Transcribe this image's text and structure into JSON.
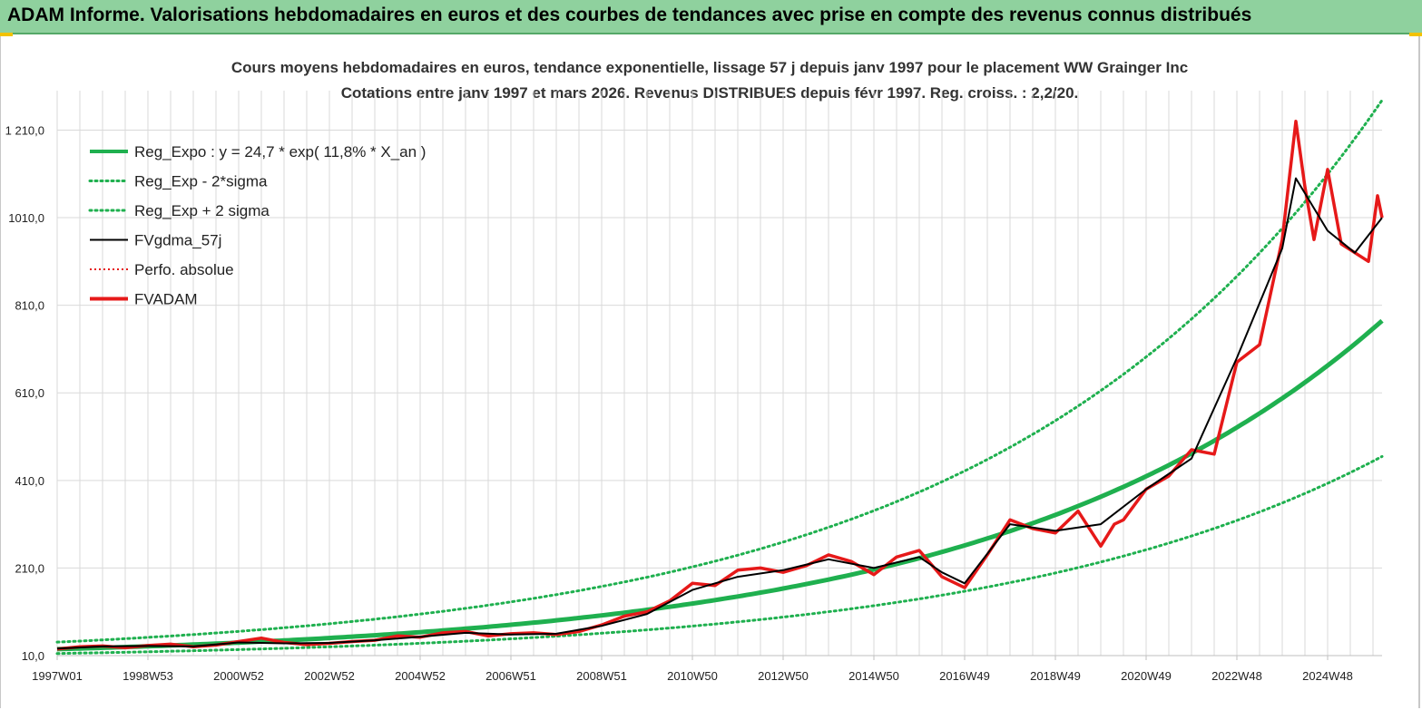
{
  "banner": {
    "title": "ADAM Informe. Valorisations hebdomadaires en euros et des courbes de tendances avec prise en compte des revenus connus distribués"
  },
  "colors": {
    "banner_bg": "#8fd19e",
    "regression": "#1fb04f",
    "smoothed": "#000000",
    "fvadam": "#e61919",
    "perfo": "#e61919",
    "grid": "#d9d9d9"
  },
  "chart_data": {
    "type": "line",
    "title_lines": [
      "Cours moyens hebdomadaires en euros, tendance exponentielle, lissage 57 j depuis janv 1997 pour le placement WW Grainger Inc",
      "Cotations entre janv 1997 et mars 2026. Revenus DISTRIBUES depuis févr 1997. Reg. croiss. : 2,2/20."
    ],
    "x_unit": "year",
    "x_range": [
      1997.0,
      2026.2
    ],
    "y_range": [
      10,
      1300
    ],
    "y_ticks": [
      10,
      210,
      410,
      610,
      810,
      1010,
      1210
    ],
    "y_tick_labels": [
      "10,0",
      "210,0",
      "410,0",
      "610,0",
      "810,0",
      "1010,0",
      "1 210,0"
    ],
    "x_ticks": [
      {
        "x": 1997.0,
        "label": "1997W01"
      },
      {
        "x": 1999.0,
        "label": "1998W53"
      },
      {
        "x": 2001.0,
        "label": "2000W52"
      },
      {
        "x": 2003.0,
        "label": "2002W52"
      },
      {
        "x": 2005.0,
        "label": "2004W52"
      },
      {
        "x": 2007.0,
        "label": "2006W51"
      },
      {
        "x": 2009.0,
        "label": "2008W51"
      },
      {
        "x": 2011.0,
        "label": "2010W50"
      },
      {
        "x": 2013.0,
        "label": "2012W50"
      },
      {
        "x": 2015.0,
        "label": "2014W50"
      },
      {
        "x": 2017.0,
        "label": "2016W49"
      },
      {
        "x": 2019.0,
        "label": "2018W49"
      },
      {
        "x": 2021.0,
        "label": "2020W49"
      },
      {
        "x": 2023.0,
        "label": "2022W48"
      },
      {
        "x": 2025.0,
        "label": "2024W48"
      }
    ],
    "regression": {
      "a": 24.7,
      "rate": 0.118,
      "lower_factor": 0.6,
      "upper_factor": 1.65
    },
    "legend": [
      {
        "key": "reg",
        "label": "Reg_Expo : y = 24,7 * exp( 11,8% *  X_an )",
        "color": "#1fb04f",
        "style": "solid-thick"
      },
      {
        "key": "lower",
        "label": "Reg_Exp - 2*sigma",
        "color": "#1fb04f",
        "style": "dotted"
      },
      {
        "key": "upper",
        "label": "Reg_Exp + 2 sigma",
        "color": "#1fb04f",
        "style": "dotted"
      },
      {
        "key": "smooth",
        "label": "FVgdma_57j",
        "color": "#000000",
        "style": "solid"
      },
      {
        "key": "perfo",
        "label": "Perfo. absolue",
        "color": "#e61919",
        "style": "dotted-thin"
      },
      {
        "key": "fvadam",
        "label": "FVADAM",
        "color": "#e61919",
        "style": "solid-thick"
      }
    ],
    "series": [
      {
        "name": "FVADAM",
        "x": [
          1997.0,
          1997.5,
          1998.0,
          1998.5,
          1999.0,
          1999.5,
          2000.0,
          2000.5,
          2001.0,
          2001.5,
          2002.0,
          2002.5,
          2003.0,
          2003.5,
          2004.0,
          2004.5,
          2005.0,
          2005.5,
          2006.0,
          2006.5,
          2007.0,
          2007.5,
          2008.0,
          2008.5,
          2009.0,
          2009.5,
          2010.0,
          2010.5,
          2011.0,
          2011.5,
          2012.0,
          2012.5,
          2013.0,
          2013.5,
          2014.0,
          2014.5,
          2015.0,
          2015.5,
          2016.0,
          2016.5,
          2017.0,
          2017.5,
          2018.0,
          2018.5,
          2019.0,
          2019.5,
          2020.0,
          2020.3,
          2020.5,
          2021.0,
          2021.5,
          2022.0,
          2022.5,
          2023.0,
          2023.5,
          2024.0,
          2024.3,
          2024.5,
          2024.7,
          2025.0,
          2025.3,
          2025.6,
          2025.9,
          2026.1,
          2026.2
        ],
        "values": [
          25,
          30,
          32,
          28,
          33,
          36,
          30,
          34,
          42,
          50,
          40,
          35,
          38,
          42,
          45,
          55,
          52,
          62,
          65,
          55,
          60,
          62,
          58,
          65,
          80,
          100,
          110,
          135,
          175,
          170,
          205,
          210,
          200,
          215,
          240,
          225,
          195,
          235,
          250,
          190,
          165,
          240,
          320,
          300,
          290,
          340,
          260,
          310,
          320,
          390,
          420,
          480,
          470,
          680,
          720,
          960,
          1230,
          1080,
          960,
          1120,
          950,
          930,
          910,
          1060,
          1010
        ]
      },
      {
        "name": "FVgdma_57j",
        "x": [
          1997.0,
          1998.0,
          1999.0,
          2000.0,
          2001.0,
          2002.0,
          2003.0,
          2004.0,
          2005.0,
          2006.0,
          2007.0,
          2008.0,
          2009.0,
          2010.0,
          2011.0,
          2012.0,
          2013.0,
          2014.0,
          2015.0,
          2016.0,
          2016.5,
          2017.0,
          2018.0,
          2019.0,
          2020.0,
          2021.0,
          2022.0,
          2023.0,
          2024.0,
          2024.3,
          2025.0,
          2025.6,
          2026.2
        ],
        "values": [
          26,
          31,
          32,
          31,
          40,
          38,
          39,
          45,
          53,
          62,
          58,
          60,
          78,
          105,
          160,
          190,
          205,
          230,
          210,
          235,
          200,
          175,
          310,
          295,
          310,
          390,
          460,
          690,
          940,
          1100,
          980,
          930,
          1010
        ]
      }
    ]
  }
}
